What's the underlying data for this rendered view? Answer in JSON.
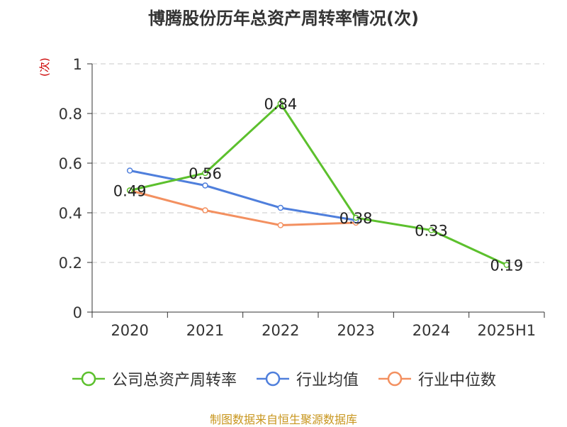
{
  "chart_data": {
    "type": "line",
    "title": "博腾股份历年总资产周转率情况(次)",
    "unit_label": "(次)",
    "categories": [
      "2020",
      "2021",
      "2022",
      "2023",
      "2024",
      "2025H1"
    ],
    "ylim": [
      0,
      1
    ],
    "yticks": [
      0,
      0.2,
      0.4,
      0.6,
      0.8,
      1
    ],
    "ytick_labels": [
      "0",
      "0.2",
      "0.4",
      "0.6",
      "0.8",
      "1"
    ],
    "grid": true,
    "legend_position": "bottom",
    "series": [
      {
        "name": "公司总资产周转率",
        "color": "#5cc02d",
        "show_labels": true,
        "values": [
          0.49,
          0.56,
          0.84,
          0.38,
          0.33,
          0.19
        ],
        "labels": [
          "0.49",
          "0.56",
          "0.84",
          "0.38",
          "0.33",
          "0.19"
        ]
      },
      {
        "name": "行业均值",
        "color": "#4f7fdc",
        "show_labels": false,
        "values": [
          0.57,
          0.51,
          0.42,
          0.37,
          null,
          null
        ]
      },
      {
        "name": "行业中位数",
        "color": "#f39060",
        "show_labels": false,
        "values": [
          0.49,
          0.41,
          0.35,
          0.36,
          null,
          null
        ]
      }
    ]
  },
  "source": "制图数据来自恒生聚源数据库"
}
